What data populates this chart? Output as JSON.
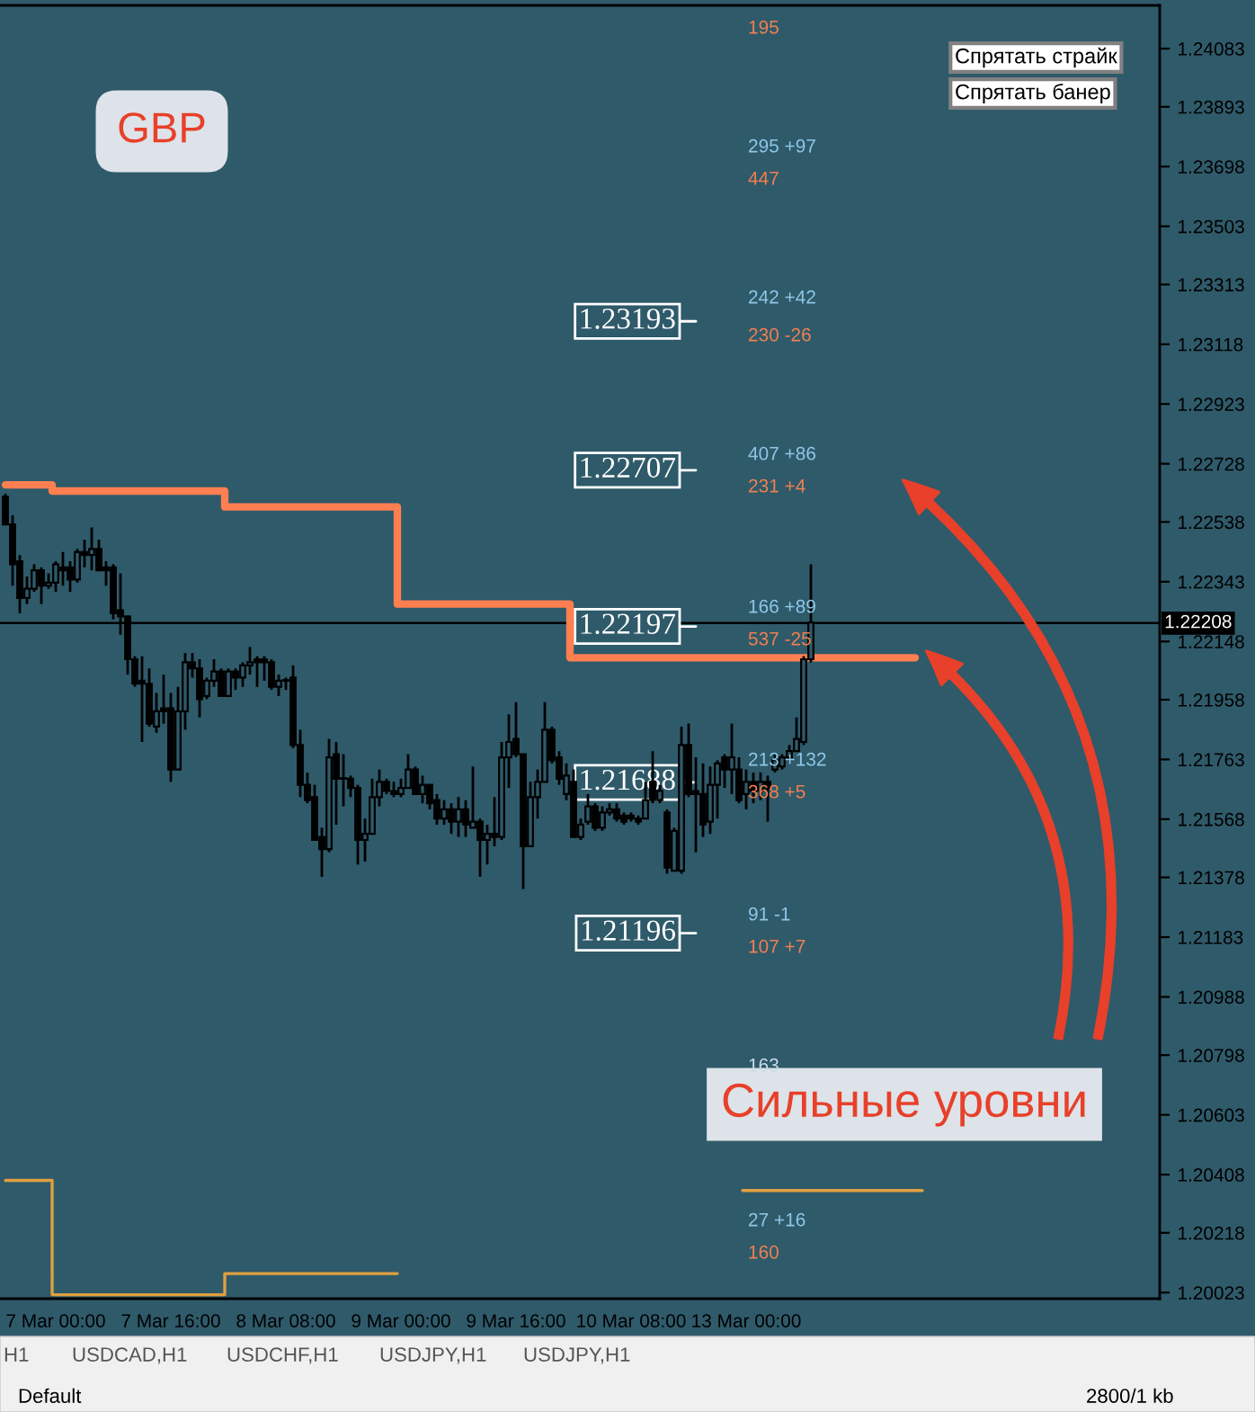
{
  "chart_data": {
    "type": "candlestick",
    "title": "GBP",
    "categories": [
      null,
      null,
      null,
      null,
      null,
      null,
      null,
      "7 Mar 00:00",
      null,
      null,
      null,
      null,
      null,
      null,
      null,
      null,
      null,
      null,
      null,
      null,
      null,
      null,
      null,
      "7 Mar 16:00",
      null,
      null,
      null,
      null,
      null,
      null,
      null,
      null,
      null,
      null,
      null,
      null,
      null,
      null,
      null,
      "8 Mar 08:00",
      null,
      null,
      null,
      null,
      null,
      null,
      null,
      null,
      null,
      null,
      null,
      null,
      null,
      null,
      null,
      "9 Mar 00:00",
      null,
      null,
      null,
      null,
      null,
      null,
      null,
      null,
      null,
      null,
      null,
      null,
      null,
      null,
      null,
      "9 Mar 16:00",
      null,
      null,
      null,
      null,
      null,
      null,
      null,
      null,
      null,
      null,
      null,
      null,
      null,
      null,
      null,
      "10 Mar 08:00",
      null,
      null,
      null,
      null,
      null,
      null,
      null,
      null,
      null,
      null,
      null,
      null,
      null,
      null,
      null,
      "13 Mar 00:00",
      null,
      null,
      null,
      null,
      null,
      null,
      null,
      null,
      null,
      null,
      null,
      null,
      null,
      null,
      null,
      null,
      null,
      null,
      null,
      null,
      null,
      null,
      null,
      null,
      null,
      null,
      null,
      null,
      null,
      null,
      null,
      null,
      null,
      null,
      null,
      null,
      null,
      null,
      null,
      null,
      null,
      null,
      null,
      null,
      null,
      null,
      null,
      null,
      null,
      null,
      null,
      null,
      null,
      null,
      null,
      null,
      null
    ],
    "ohlc": [
      [
        1.2262,
        1.2263,
        1.2253,
        1.2253
      ],
      [
        1.2253,
        1.2256,
        1.2233,
        1.224
      ],
      [
        1.2241,
        1.2243,
        1.2224,
        1.2229
      ],
      [
        1.2229,
        1.2236,
        1.2227,
        1.2232
      ],
      [
        1.2232,
        1.224,
        1.2231,
        1.2238
      ],
      [
        1.2238,
        1.2239,
        1.2227,
        1.2233
      ],
      [
        1.2233,
        1.2237,
        1.2232,
        1.2234
      ],
      [
        1.2234,
        1.2241,
        1.2231,
        1.224
      ],
      [
        1.2239,
        1.2244,
        1.2233,
        1.2238
      ],
      [
        1.2239,
        1.2241,
        1.2231,
        1.2235
      ],
      [
        1.2235,
        1.2245,
        1.2234,
        1.2244
      ],
      [
        1.2244,
        1.2248,
        1.2239,
        1.2243
      ],
      [
        1.2243,
        1.2252,
        1.2238,
        1.2245
      ],
      [
        1.2245,
        1.2248,
        1.2238,
        1.2238
      ],
      [
        1.2239,
        1.2241,
        1.2233,
        1.2238
      ],
      [
        1.2239,
        1.224,
        1.2222,
        1.2224
      ],
      [
        1.2225,
        1.2237,
        1.2217,
        1.2223
      ],
      [
        1.2223,
        1.2223,
        1.2204,
        1.2209
      ],
      [
        1.2209,
        1.221,
        1.22,
        1.2201
      ],
      [
        1.2202,
        1.221,
        1.2182,
        1.2201
      ],
      [
        1.2201,
        1.2206,
        1.2187,
        1.2188
      ],
      [
        1.2187,
        1.2198,
        1.2185,
        1.2192
      ],
      [
        1.2193,
        1.2204,
        1.2188,
        1.2192
      ],
      [
        1.2193,
        1.2198,
        1.2169,
        1.2173
      ],
      [
        1.2173,
        1.22,
        1.2173,
        1.2192
      ],
      [
        1.2192,
        1.2211,
        1.2186,
        1.2208
      ],
      [
        1.2208,
        1.2211,
        1.2203,
        1.2206
      ],
      [
        1.2206,
        1.2209,
        1.219,
        1.2196
      ],
      [
        1.2197,
        1.2203,
        1.2196,
        1.2202
      ],
      [
        1.2202,
        1.2209,
        1.22,
        1.2205
      ],
      [
        1.2205,
        1.2206,
        1.2197,
        1.2197
      ],
      [
        1.2197,
        1.2206,
        1.2197,
        1.2205
      ],
      [
        1.2205,
        1.2206,
        1.2199,
        1.2203
      ],
      [
        1.2203,
        1.2208,
        1.22,
        1.2207
      ],
      [
        1.2207,
        1.2213,
        1.2204,
        1.2208
      ],
      [
        1.2209,
        1.221,
        1.22,
        1.2208
      ],
      [
        1.2209,
        1.221,
        1.2202,
        1.2208
      ],
      [
        1.2208,
        1.2209,
        1.2199,
        1.22
      ],
      [
        1.22,
        1.2204,
        1.2197,
        1.2202
      ],
      [
        1.2202,
        1.2203,
        1.2199,
        1.2202
      ],
      [
        1.2203,
        1.2207,
        1.218,
        1.2181
      ],
      [
        1.2181,
        1.2186,
        1.2164,
        1.2168
      ],
      [
        1.2168,
        1.2172,
        1.2162,
        1.2163
      ],
      [
        1.2164,
        1.2168,
        1.215,
        1.215
      ],
      [
        1.2151,
        1.2154,
        1.2138,
        1.2147
      ],
      [
        1.2147,
        1.2183,
        1.2146,
        1.2177
      ],
      [
        1.2178,
        1.2182,
        1.2155,
        1.217
      ],
      [
        1.217,
        1.2178,
        1.2161,
        1.217
      ],
      [
        1.217,
        1.2171,
        1.2164,
        1.2167
      ],
      [
        1.2167,
        1.2168,
        1.2142,
        1.215
      ],
      [
        1.215,
        1.2157,
        1.2143,
        1.2152
      ],
      [
        1.2152,
        1.217,
        1.2152,
        1.2164
      ],
      [
        1.2164,
        1.2173,
        1.2161,
        1.2169
      ],
      [
        1.2169,
        1.217,
        1.2165,
        1.2166
      ],
      [
        1.2166,
        1.2169,
        1.2164,
        1.2165
      ],
      [
        1.2165,
        1.217,
        1.2164,
        1.2167
      ],
      [
        1.2167,
        1.2178,
        1.2167,
        1.2173
      ],
      [
        1.2173,
        1.2174,
        1.2165,
        1.2165
      ],
      [
        1.2165,
        1.2171,
        1.2162,
        1.2168
      ],
      [
        1.2168,
        1.2168,
        1.216,
        1.2162
      ],
      [
        1.2163,
        1.2165,
        1.2155,
        1.2157
      ],
      [
        1.2157,
        1.2163,
        1.2155,
        1.216
      ],
      [
        1.216,
        1.2162,
        1.2152,
        1.2156
      ],
      [
        1.2156,
        1.2164,
        1.2151,
        1.216
      ],
      [
        1.216,
        1.2163,
        1.2151,
        1.2155
      ],
      [
        1.2154,
        1.2174,
        1.2154,
        1.2156
      ],
      [
        1.2156,
        1.2157,
        1.2138,
        1.215
      ],
      [
        1.215,
        1.2155,
        1.2142,
        1.2152
      ],
      [
        1.2152,
        1.2164,
        1.2148,
        1.2151
      ],
      [
        1.2151,
        1.2182,
        1.215,
        1.2177
      ],
      [
        1.2177,
        1.2191,
        1.2167,
        1.2182
      ],
      [
        1.2183,
        1.2195,
        1.2177,
        1.2178
      ],
      [
        1.2178,
        1.2178,
        1.2134,
        1.2148
      ],
      [
        1.2148,
        1.2169,
        1.2148,
        1.2164
      ],
      [
        1.2164,
        1.2173,
        1.2157,
        1.2169
      ],
      [
        1.2169,
        1.2195,
        1.2169,
        1.2186
      ],
      [
        1.2186,
        1.2187,
        1.2175,
        1.2176
      ],
      [
        1.2177,
        1.2179,
        1.2168,
        1.217
      ],
      [
        1.2165,
        1.2175,
        1.2163,
        1.2171
      ],
      [
        1.2169,
        1.2173,
        1.2151,
        1.2151
      ],
      [
        1.2151,
        1.2157,
        1.215,
        1.2155
      ],
      [
        1.2156,
        1.2165,
        1.2155,
        1.2161
      ],
      [
        1.2161,
        1.2162,
        1.2153,
        1.2154
      ],
      [
        1.2154,
        1.2161,
        1.2153,
        1.2159
      ],
      [
        1.2159,
        1.2162,
        1.2158,
        1.216
      ],
      [
        1.216,
        1.2162,
        1.2156,
        1.2157
      ],
      [
        1.2158,
        1.2159,
        1.2155,
        1.2156
      ],
      [
        1.2158,
        1.2159,
        1.2156,
        1.2157
      ],
      [
        1.2157,
        1.2158,
        1.2155,
        1.2156
      ],
      [
        1.2157,
        1.2169,
        1.2157,
        1.2163
      ],
      [
        1.2169,
        1.2179,
        1.2162,
        1.2163
      ],
      [
        1.2163,
        1.2168,
        1.2162,
        1.2166
      ],
      [
        1.2159,
        1.216,
        1.2139,
        1.2141
      ],
      [
        1.214,
        1.2154,
        1.214,
        1.2153
      ],
      [
        1.214,
        1.2187,
        1.2139,
        1.2181
      ],
      [
        1.2181,
        1.2188,
        1.2164,
        1.2165
      ],
      [
        1.2166,
        1.2177,
        1.2146,
        1.2165
      ],
      [
        1.2165,
        1.2175,
        1.2151,
        1.2155
      ],
      [
        1.2156,
        1.2174,
        1.2152,
        1.2168
      ],
      [
        1.2168,
        1.2176,
        1.2157,
        1.2175
      ],
      [
        1.2177,
        1.2178,
        1.2167,
        1.2173
      ],
      [
        1.2173,
        1.2188,
        1.2165,
        1.2177
      ],
      [
        1.2173,
        1.2177,
        1.2162,
        1.2163
      ],
      [
        1.2165,
        1.2173,
        1.216,
        1.2169
      ],
      [
        1.2169,
        1.2172,
        1.2162,
        1.2166
      ],
      [
        1.2166,
        1.2172,
        1.2163,
        1.2169
      ],
      [
        1.2169,
        1.2171,
        1.2156,
        1.2167
      ],
      [
        1.2173,
        1.2178,
        1.2172,
        1.2176
      ],
      [
        1.2174,
        1.2178,
        1.2173,
        1.2177
      ],
      [
        1.2177,
        1.2181,
        1.2176,
        1.2179
      ],
      [
        1.2179,
        1.219,
        1.2179,
        1.2183
      ],
      [
        1.2182,
        1.221,
        1.2181,
        1.2209
      ],
      [
        1.2209,
        1.224,
        1.2208,
        1.2221
      ],
      null,
      null,
      null,
      null,
      null,
      null,
      null,
      null,
      null,
      null,
      null,
      null,
      null,
      null,
      null,
      null,
      null,
      null,
      null,
      null,
      null,
      null,
      null,
      null,
      null,
      null,
      null,
      null,
      null,
      null,
      null,
      null,
      null,
      null,
      null,
      null,
      null,
      null,
      null,
      null,
      null,
      null,
      null,
      null,
      null,
      null,
      null,
      null
    ],
    "series": [
      {
        "type": "step",
        "color": "#ff7f50",
        "values": [
          1.22659,
          1.22659,
          1.22659,
          1.22659,
          1.22659,
          1.22659,
          1.22659,
          1.22639,
          1.22639,
          1.22639,
          1.22639,
          1.22639,
          1.22639,
          1.22639,
          1.22639,
          1.22639,
          1.22639,
          1.22639,
          1.22639,
          1.22639,
          1.22639,
          1.22639,
          1.22639,
          1.22639,
          1.22639,
          1.22639,
          1.22639,
          1.22639,
          1.22639,
          1.22639,
          1.22639,
          1.22587,
          1.22587,
          1.22587,
          1.22587,
          1.22587,
          1.22587,
          1.22587,
          1.22587,
          1.22587,
          1.22587,
          1.22587,
          1.22587,
          1.22587,
          1.22587,
          1.22587,
          1.22587,
          1.22587,
          1.22587,
          1.22587,
          1.22587,
          1.22587,
          1.22587,
          1.22587,
          1.22587,
          1.2227,
          1.2227,
          1.2227,
          1.2227,
          1.2227,
          1.2227,
          1.2227,
          1.2227,
          1.2227,
          1.2227,
          1.2227,
          1.2227,
          1.2227,
          1.2227,
          1.2227,
          1.2227,
          1.2227,
          1.2227,
          1.2227,
          1.2227,
          1.2227,
          1.2227,
          1.2227,
          1.2227,
          1.22095,
          1.22095,
          1.22095,
          1.22095,
          1.22095,
          1.22095,
          1.22095,
          1.22095,
          1.22095,
          1.22095,
          1.22095,
          1.22095,
          1.22095,
          1.22095,
          1.22095,
          1.22095,
          1.22095,
          1.22095,
          1.22095,
          1.22095,
          1.22095,
          1.22095,
          1.22095,
          1.22095,
          1.22095,
          1.22095,
          1.22095,
          1.22095,
          1.22095,
          1.22095,
          1.22095,
          1.22095,
          1.22095,
          1.22095,
          1.22095,
          1.22095,
          1.22095,
          1.22095,
          1.22095,
          1.22095,
          1.22095,
          1.22095,
          1.22095,
          1.22095,
          1.22095,
          1.22095,
          1.22095,
          1.22095,
          null,
          null,
          null,
          null,
          null,
          null,
          null,
          null,
          null,
          null,
          null,
          null,
          null,
          null,
          null,
          null,
          null,
          null,
          null,
          null,
          null,
          null,
          null,
          null,
          null,
          null,
          null,
          null,
          null,
          null,
          null,
          null,
          null,
          null
        ]
      },
      {
        "type": "step",
        "color": "#e0a040",
        "values": [
          1.20389,
          1.20389,
          1.20389,
          1.20389,
          1.20389,
          1.20389,
          1.20389,
          1.20016,
          1.20016,
          1.20016,
          1.20016,
          1.20016,
          1.20016,
          1.20016,
          1.20016,
          1.20016,
          1.20016,
          1.20016,
          1.20016,
          1.20016,
          1.20016,
          1.20016,
          1.20016,
          1.20016,
          1.20016,
          1.20016,
          1.20016,
          1.20016,
          1.20016,
          1.20016,
          1.20016,
          1.20085,
          1.20085,
          1.20085,
          1.20085,
          1.20085,
          1.20085,
          1.20085,
          1.20085,
          1.20085,
          1.20085,
          1.20085,
          1.20085,
          1.20085,
          1.20085,
          1.20085,
          1.20085,
          1.20085,
          1.20085,
          1.20085,
          1.20085,
          1.20085,
          1.20085,
          1.20085,
          1.20085,
          null,
          null,
          null,
          null,
          null,
          null,
          null,
          null,
          null,
          null,
          null,
          null,
          null,
          null,
          null,
          null,
          null,
          null,
          null,
          null,
          null,
          null,
          null,
          null,
          null,
          null,
          null,
          null,
          null,
          null,
          null,
          null,
          null,
          null,
          null,
          null,
          null,
          null,
          null,
          null,
          null,
          null,
          null,
          null,
          null,
          null,
          null,
          null,
          1.20356,
          1.20356,
          1.20356,
          1.20356,
          1.20356,
          1.20356,
          1.20356,
          1.20356,
          1.20356,
          1.20356,
          1.20356,
          1.20356,
          1.20356,
          1.20356,
          1.20356,
          1.20356,
          1.20356,
          1.20356,
          1.20356,
          1.20356,
          1.20356,
          1.20356,
          1.20356,
          1.20356,
          1.20356,
          null,
          null,
          null,
          null,
          null,
          null,
          null,
          null,
          null,
          null,
          null,
          null,
          null,
          null,
          null,
          null,
          null,
          null,
          null,
          null,
          null,
          null,
          null,
          null,
          null,
          null,
          null,
          null,
          null,
          null,
          null,
          null,
          null
        ]
      }
    ],
    "ylim": [
      1.20003,
      1.24224
    ],
    "yticks": [
      1.24083,
      1.23893,
      1.23698,
      1.23503,
      1.23313,
      1.23118,
      1.22923,
      1.22728,
      1.22538,
      1.22343,
      1.22148,
      1.21958,
      1.21763,
      1.21568,
      1.21378,
      1.21183,
      1.20988,
      1.20798,
      1.20603,
      1.20408,
      1.20218,
      1.20023
    ],
    "ref_lines": [
      {
        "axis": "y",
        "value": 1.22208,
        "label": "1.22208",
        "color": "#000000"
      },
      {
        "axis": "y",
        "value": 1.23193,
        "label": "1.23193",
        "color": "#ffffff"
      },
      {
        "axis": "y",
        "value": 1.22707,
        "label": "1.22707",
        "color": "#ffffff"
      },
      {
        "axis": "y",
        "value": 1.22197,
        "label": "1.22197",
        "color": "#ffffff"
      },
      {
        "axis": "y",
        "value": 1.21688,
        "label": "1.21688",
        "color": "#ffffff"
      },
      {
        "axis": "y",
        "value": 1.21196,
        "label": "1.21196",
        "color": "#ffffff"
      }
    ],
    "annotations": [
      "195",
      "295 +97",
      "447",
      "242 +42",
      "230 -26",
      "407 +86",
      "231 +4",
      "166 +89",
      "537 -25",
      "213 +132",
      "368 +5",
      "91 -1",
      "107 +7",
      "163",
      "27 +16",
      "160",
      "Сильные уровни",
      "Спрятать страйк",
      "Спрятать банер",
      "H1",
      "USDCAD,H1",
      "USDCHF,H1",
      "USDJPY,H1",
      "USDJPY,H1",
      "Default",
      "2800/1 kb"
    ]
  }
}
